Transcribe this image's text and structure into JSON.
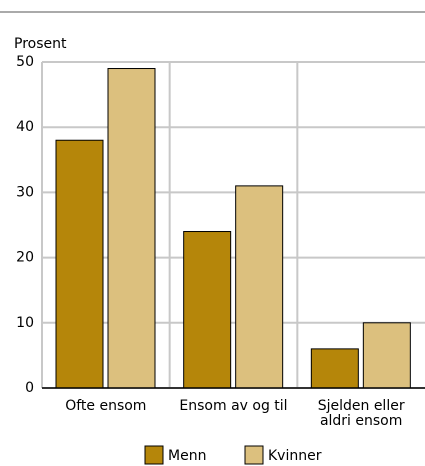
{
  "chart_data": {
    "type": "bar",
    "y_label": "Prosent",
    "categories": [
      "Ofte ensom",
      "Ensom av og til",
      "Sjelden eller aldri ensom"
    ],
    "series": [
      {
        "name": "Menn",
        "color": "#b5860a",
        "values": [
          38,
          24,
          6
        ]
      },
      {
        "name": "Kvinner",
        "color": "#dcc07e",
        "values": [
          49,
          31,
          10
        ]
      }
    ],
    "ylim": [
      0,
      50
    ],
    "yticks": [
      0,
      10,
      20,
      30,
      40,
      50
    ],
    "grid": true,
    "legend": "bottom"
  }
}
